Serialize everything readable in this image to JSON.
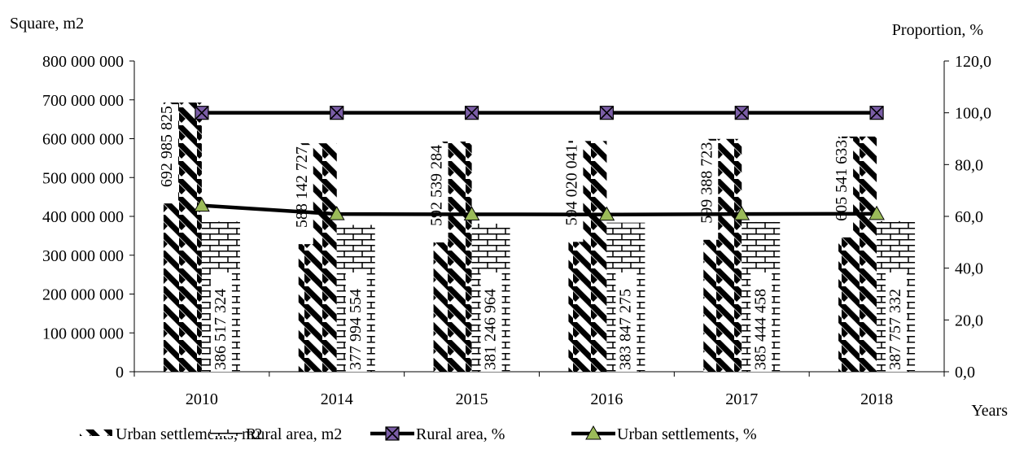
{
  "chart_data": {
    "type": "bar",
    "ylabel_left": "Square, m2",
    "ylabel_right": "Proportion, %",
    "xlabel": "Years",
    "categories": [
      "2010",
      "2014",
      "2015",
      "2016",
      "2017",
      "2018"
    ],
    "y_left_lim": [
      0,
      800000000
    ],
    "y_left_ticks": [
      "0",
      "100 000 000",
      "200 000 000",
      "300 000 000",
      "400 000 000",
      "500 000 000",
      "600 000 000",
      "700 000 000",
      "800 000 000"
    ],
    "y_right_lim": [
      0,
      120
    ],
    "y_right_ticks": [
      "0,0",
      "20,0",
      "40,0",
      "60,0",
      "80,0",
      "100,0",
      "120,0"
    ],
    "grid": false,
    "legend_position": "bottom",
    "series": [
      {
        "name": "Urban settlements, m2",
        "kind": "bar",
        "pattern": "diagonal-stripes",
        "axis": "left",
        "values": [
          692985825,
          588142727,
          592539284,
          594020041,
          599388723,
          605541633
        ],
        "labels": [
          "692 985 825",
          "588 142 727",
          "592 539 284",
          "594 020 041",
          "599 388 723",
          "605 541 633"
        ]
      },
      {
        "name": "Rural area, m2",
        "kind": "bar",
        "pattern": "brick",
        "axis": "left",
        "values": [
          386517324,
          377994554,
          381246964,
          383847275,
          385444458,
          387757332
        ],
        "labels": [
          "386 517 324",
          "377 994 554",
          "381 246 964",
          "383 847 275",
          "385 444 458",
          "387 757 332"
        ]
      },
      {
        "name": "Rural area, %",
        "kind": "line",
        "marker": "x-square",
        "marker_color": "#7b5ea7",
        "axis": "right",
        "values": [
          100,
          100,
          100,
          100,
          100,
          100
        ]
      },
      {
        "name": "Urban settlements, %",
        "kind": "line",
        "marker": "triangle",
        "marker_color": "#9bbb59",
        "axis": "right",
        "values": [
          64.2,
          60.9,
          60.8,
          60.7,
          60.9,
          61.0
        ]
      }
    ]
  }
}
